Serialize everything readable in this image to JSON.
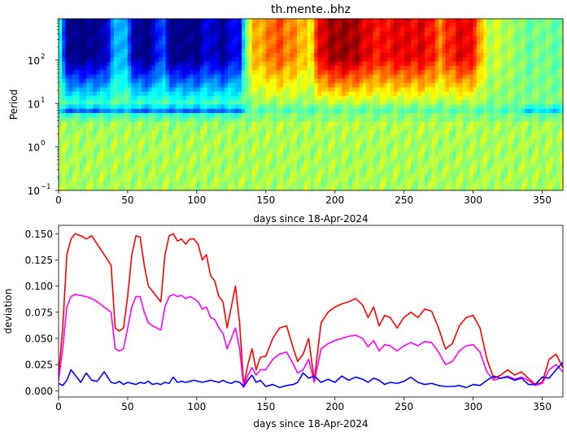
{
  "chart_data": [
    {
      "type": "heatmap",
      "title": "th.mente..bhz",
      "xlabel": "days since 18-Apr-2024",
      "ylabel": "Period",
      "xlim": [
        0,
        365
      ],
      "ylim": [
        0.1,
        900
      ],
      "yscale": "log",
      "colormap": "jet",
      "x_ticks": [
        0,
        50,
        100,
        150,
        200,
        250,
        300,
        350
      ],
      "y_ticks": [
        {
          "value": 0.1,
          "label": "10",
          "exp": "−1"
        },
        {
          "value": 1,
          "label": "10",
          "exp": "0"
        },
        {
          "value": 10,
          "label": "10",
          "exp": "1"
        },
        {
          "value": 100,
          "label": "10",
          "exp": "2"
        }
      ],
      "x_intensity_keyframes": {
        "x": [
          0,
          5,
          12,
          20,
          28,
          33,
          38,
          43,
          48,
          52,
          56,
          62,
          68,
          72,
          76,
          80,
          86,
          92,
          98,
          104,
          108,
          112,
          118,
          124,
          128,
          132,
          135,
          140,
          150,
          158,
          165,
          172,
          178,
          182,
          186,
          190,
          196,
          205,
          215,
          225,
          232,
          240,
          248,
          255,
          262,
          270,
          276,
          282,
          288,
          294,
          300,
          306,
          310,
          316,
          322,
          330,
          340,
          350,
          358,
          365
        ],
        "v": [
          0.0,
          0.9,
          1.0,
          1.0,
          0.92,
          0.95,
          0.55,
          0.35,
          0.35,
          0.7,
          0.95,
          1.0,
          0.95,
          0.6,
          0.6,
          0.95,
          1.0,
          0.95,
          1.0,
          0.9,
          0.75,
          0.85,
          0.95,
          0.85,
          0.65,
          0.85,
          0.05,
          -0.35,
          -0.45,
          -0.6,
          -0.5,
          -0.45,
          -0.35,
          -0.2,
          -0.6,
          -0.8,
          -0.9,
          -0.95,
          -0.9,
          -0.75,
          -0.7,
          -0.75,
          -0.8,
          -0.75,
          -0.8,
          -0.7,
          -0.5,
          -0.65,
          -0.75,
          -0.8,
          -0.7,
          -0.4,
          -0.1,
          -0.15,
          -0.1,
          -0.05,
          0.05,
          0.0,
          0.05,
          0.05
        ]
      }
    },
    {
      "type": "line",
      "title": "",
      "xlabel": "days since 18-Apr-2024",
      "ylabel": "deviation",
      "xlim": [
        0,
        365
      ],
      "ylim": [
        -0.006,
        0.158
      ],
      "x_ticks": [
        0,
        50,
        100,
        150,
        200,
        250,
        300,
        350
      ],
      "y_ticks": [
        0.0,
        0.025,
        0.05,
        0.075,
        0.1,
        0.125,
        0.15
      ],
      "y_tick_labels": [
        "0.000",
        "0.025",
        "0.050",
        "0.075",
        "0.100",
        "0.125",
        "0.150"
      ],
      "series": [
        {
          "color": "#ff0000",
          "x": [
            0,
            3,
            6,
            9,
            12,
            16,
            20,
            24,
            28,
            33,
            38,
            41,
            44,
            47,
            50,
            53,
            56,
            59,
            62,
            65,
            68,
            71,
            74,
            77,
            80,
            83,
            86,
            89,
            92,
            95,
            98,
            101,
            104,
            107,
            110,
            113,
            116,
            119,
            122,
            125,
            128,
            131,
            134,
            137,
            140,
            143,
            146,
            150,
            155,
            160,
            165,
            170,
            173,
            177,
            181,
            185,
            190,
            195,
            200,
            205,
            210,
            215,
            220,
            224,
            228,
            232,
            236,
            240,
            245,
            250,
            255,
            260,
            265,
            270,
            275,
            280,
            285,
            290,
            295,
            300,
            305,
            310,
            315,
            320,
            325,
            330,
            335,
            340,
            345,
            350,
            355,
            360,
            365
          ],
          "values": [
            0.015,
            0.06,
            0.13,
            0.145,
            0.15,
            0.148,
            0.145,
            0.148,
            0.14,
            0.13,
            0.12,
            0.06,
            0.057,
            0.06,
            0.09,
            0.13,
            0.148,
            0.147,
            0.12,
            0.1,
            0.095,
            0.09,
            0.085,
            0.13,
            0.148,
            0.15,
            0.143,
            0.145,
            0.14,
            0.145,
            0.145,
            0.14,
            0.125,
            0.13,
            0.11,
            0.105,
            0.09,
            0.085,
            0.06,
            0.08,
            0.1,
            0.065,
            0.005,
            0.025,
            0.04,
            0.02,
            0.032,
            0.033,
            0.05,
            0.06,
            0.062,
            0.04,
            0.028,
            0.035,
            0.05,
            0.01,
            0.065,
            0.075,
            0.08,
            0.083,
            0.085,
            0.088,
            0.082,
            0.07,
            0.08,
            0.062,
            0.072,
            0.07,
            0.06,
            0.07,
            0.075,
            0.07,
            0.078,
            0.076,
            0.06,
            0.04,
            0.045,
            0.062,
            0.07,
            0.072,
            0.06,
            0.03,
            0.012,
            0.015,
            0.02,
            0.015,
            0.018,
            0.012,
            0.006,
            0.008,
            0.03,
            0.035,
            0.022
          ]
        },
        {
          "color": "#ff00ff",
          "x": [
            0,
            3,
            6,
            9,
            12,
            16,
            20,
            24,
            28,
            33,
            38,
            41,
            44,
            47,
            50,
            53,
            56,
            59,
            62,
            65,
            68,
            71,
            74,
            77,
            80,
            83,
            86,
            89,
            92,
            95,
            98,
            101,
            104,
            107,
            110,
            113,
            116,
            119,
            122,
            125,
            128,
            131,
            134,
            137,
            140,
            143,
            146,
            150,
            155,
            160,
            165,
            170,
            173,
            177,
            181,
            185,
            190,
            195,
            200,
            205,
            210,
            215,
            220,
            224,
            228,
            232,
            236,
            240,
            245,
            250,
            255,
            260,
            265,
            270,
            275,
            280,
            285,
            290,
            295,
            300,
            305,
            310,
            315,
            320,
            325,
            330,
            335,
            340,
            345,
            350,
            355,
            360,
            365
          ],
          "values": [
            0.01,
            0.04,
            0.08,
            0.09,
            0.092,
            0.091,
            0.09,
            0.088,
            0.085,
            0.08,
            0.075,
            0.04,
            0.038,
            0.04,
            0.06,
            0.08,
            0.09,
            0.09,
            0.075,
            0.065,
            0.062,
            0.06,
            0.058,
            0.08,
            0.09,
            0.092,
            0.09,
            0.091,
            0.088,
            0.09,
            0.088,
            0.085,
            0.078,
            0.08,
            0.07,
            0.068,
            0.06,
            0.055,
            0.04,
            0.05,
            0.06,
            0.04,
            0.003,
            0.015,
            0.022,
            0.015,
            0.02,
            0.02,
            0.03,
            0.035,
            0.037,
            0.025,
            0.017,
            0.02,
            0.03,
            0.008,
            0.04,
            0.045,
            0.048,
            0.05,
            0.052,
            0.053,
            0.05,
            0.042,
            0.048,
            0.038,
            0.044,
            0.043,
            0.038,
            0.043,
            0.046,
            0.043,
            0.047,
            0.046,
            0.037,
            0.025,
            0.028,
            0.038,
            0.043,
            0.044,
            0.037,
            0.018,
            0.01,
            0.012,
            0.014,
            0.011,
            0.013,
            0.01,
            0.005,
            0.007,
            0.02,
            0.025,
            0.018
          ]
        },
        {
          "color": "#0000ff",
          "x": [
            0,
            3,
            6,
            9,
            12,
            16,
            20,
            24,
            28,
            33,
            38,
            41,
            44,
            47,
            50,
            53,
            56,
            59,
            62,
            65,
            68,
            71,
            74,
            77,
            80,
            83,
            86,
            89,
            92,
            95,
            98,
            101,
            104,
            107,
            110,
            113,
            116,
            119,
            122,
            125,
            128,
            131,
            134,
            137,
            140,
            143,
            146,
            150,
            155,
            160,
            165,
            170,
            173,
            177,
            181,
            185,
            190,
            195,
            200,
            205,
            210,
            215,
            220,
            224,
            228,
            232,
            236,
            240,
            245,
            250,
            255,
            260,
            265,
            270,
            275,
            280,
            285,
            290,
            295,
            300,
            305,
            310,
            315,
            320,
            325,
            330,
            335,
            340,
            345,
            350,
            355,
            360,
            365
          ],
          "values": [
            0.007,
            0.005,
            0.01,
            0.02,
            0.015,
            0.008,
            0.017,
            0.01,
            0.009,
            0.018,
            0.008,
            0.007,
            0.009,
            0.006,
            0.008,
            0.007,
            0.006,
            0.008,
            0.007,
            0.009,
            0.006,
            0.007,
            0.006,
            0.008,
            0.007,
            0.013,
            0.008,
            0.009,
            0.008,
            0.009,
            0.01,
            0.009,
            0.008,
            0.009,
            0.01,
            0.009,
            0.008,
            0.01,
            0.008,
            0.007,
            0.009,
            0.008,
            0.004,
            0.01,
            0.015,
            0.008,
            0.01,
            0.004,
            0.006,
            0.003,
            0.005,
            0.006,
            0.008,
            0.017,
            0.012,
            0.014,
            0.008,
            0.011,
            0.008,
            0.014,
            0.01,
            0.013,
            0.011,
            0.008,
            0.012,
            0.01,
            0.006,
            0.008,
            0.007,
            0.009,
            0.013,
            0.008,
            0.006,
            0.007,
            0.005,
            0.004,
            0.004,
            0.005,
            0.003,
            0.006,
            0.005,
            0.01,
            0.014,
            0.012,
            0.013,
            0.01,
            0.012,
            0.006,
            0.006,
            0.013,
            0.012,
            0.02,
            0.027
          ]
        }
      ]
    }
  ]
}
